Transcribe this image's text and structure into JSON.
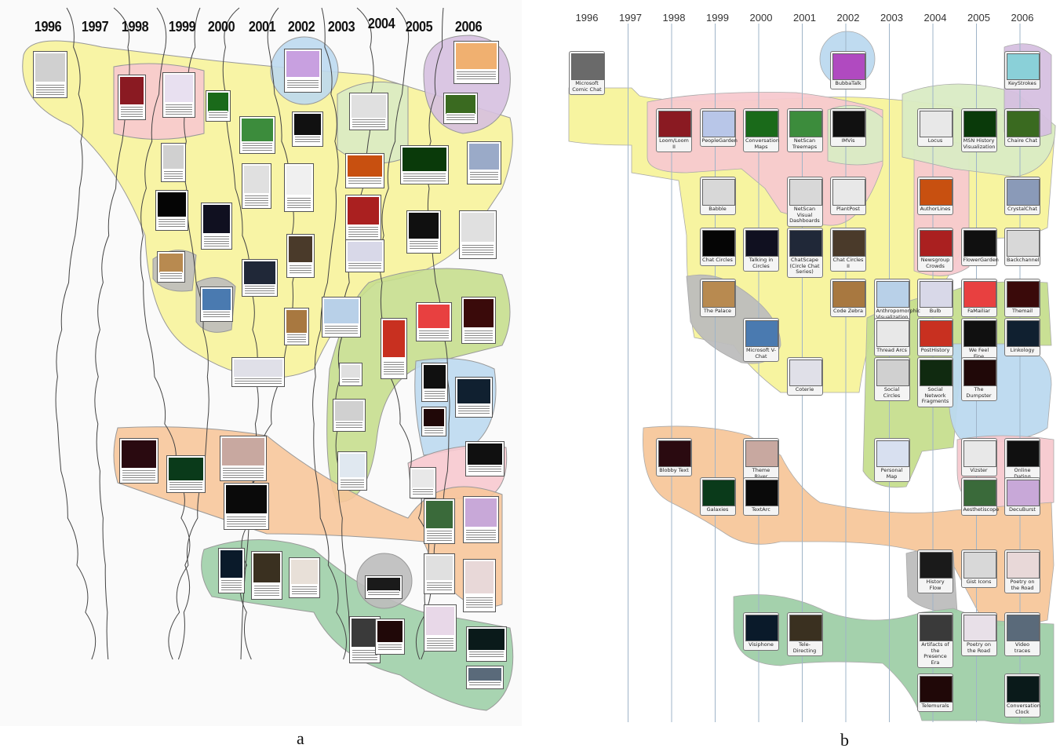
{
  "panel_a": {
    "caption": "a",
    "years": [
      "1996",
      "1997",
      "1998",
      "1999",
      "2000",
      "2001",
      "2002",
      "2003",
      "2004",
      "2005",
      "2006"
    ]
  },
  "panel_b": {
    "caption": "b",
    "years": [
      "1996",
      "1997",
      "1998",
      "1999",
      "2000",
      "2001",
      "2002",
      "2003",
      "2004",
      "2005",
      "2006"
    ],
    "projects": [
      {
        "label": "Microsoft Comic Chat",
        "col": 0,
        "row": 0,
        "tone": "#6a6a6a"
      },
      {
        "label": "Loom/Loom II",
        "col": 2,
        "row": 1,
        "tone": "#8a1a22"
      },
      {
        "label": "PeopleGarden",
        "col": 3,
        "row": 1,
        "tone": "#b8c6e8"
      },
      {
        "label": "Conversation Maps",
        "col": 4,
        "row": 1,
        "tone": "#1a6a1a"
      },
      {
        "label": "NetScan Treemaps",
        "col": 5,
        "row": 1,
        "tone": "#3c8c3c"
      },
      {
        "label": "IMVis",
        "col": 6,
        "row": 1,
        "tone": "#111111"
      },
      {
        "label": "BubbaTalk",
        "col": 6,
        "row": 0,
        "tone": "#b04ac0"
      },
      {
        "label": "Locus",
        "col": 8,
        "row": 1,
        "tone": "#e8e8e8"
      },
      {
        "label": "MSN History Visualization",
        "col": 9,
        "row": 1,
        "tone": "#0a3a0a"
      },
      {
        "label": "KeyStrokes",
        "col": 10,
        "row": 0,
        "tone": "#8ad0d8"
      },
      {
        "label": "Chaire Chat",
        "col": 10,
        "row": 1,
        "tone": "#3a6a20"
      },
      {
        "label": "CrystalChat",
        "col": 10,
        "row": 2,
        "tone": "#8a9ab8"
      },
      {
        "label": "Babble",
        "col": 3,
        "row": 2,
        "tone": "#d8d8d8"
      },
      {
        "label": "NetScan Visual Dashboards",
        "col": 5,
        "row": 2,
        "tone": "#d8d8d8"
      },
      {
        "label": "PlantPost",
        "col": 6,
        "row": 2,
        "tone": "#e8e8e8"
      },
      {
        "label": "AuthorLines",
        "col": 8,
        "row": 2,
        "tone": "#c85010"
      },
      {
        "label": "Newsgroup Crowds",
        "col": 8,
        "row": 3,
        "tone": "#aa2020"
      },
      {
        "label": "FlowerGarden",
        "col": 9,
        "row": 3,
        "tone": "#101010"
      },
      {
        "label": "Backchannel",
        "col": 10,
        "row": 3,
        "tone": "#d8d8d8"
      },
      {
        "label": "Chat Circles",
        "col": 3,
        "row": 3,
        "tone": "#050505"
      },
      {
        "label": "Talking in Circles",
        "col": 4,
        "row": 3,
        "tone": "#101020"
      },
      {
        "label": "ChatScape (Circle Chat Series)",
        "col": 5,
        "row": 3,
        "tone": "#202838"
      },
      {
        "label": "Chat Circles II",
        "col": 6,
        "row": 3,
        "tone": "#4a3a2a"
      },
      {
        "label": "Bulb",
        "col": 8,
        "row": 4,
        "tone": "#d8d8e8"
      },
      {
        "label": "The Palace",
        "col": 3,
        "row": 4,
        "tone": "#b88a50"
      },
      {
        "label": "Anthropomorphic Visualization",
        "col": 7,
        "row": 4,
        "tone": "#b8d0e8"
      },
      {
        "label": "Code Zebra",
        "col": 6,
        "row": 4,
        "tone": "#a87840"
      },
      {
        "label": "FaMailiar",
        "col": 9,
        "row": 4,
        "tone": "#e84040"
      },
      {
        "label": "Themail",
        "col": 10,
        "row": 4,
        "tone": "#3a0a0a"
      },
      {
        "label": "Microsoft V-Chat",
        "col": 4,
        "row": 5,
        "tone": "#4a7ab0"
      },
      {
        "label": "Thread Arcs",
        "col": 7,
        "row": 5,
        "tone": "#e8e8e8"
      },
      {
        "label": "PostHistory",
        "col": 8,
        "row": 5,
        "tone": "#c83020"
      },
      {
        "label": "Coterie",
        "col": 5,
        "row": 6,
        "tone": "#e0e0e8"
      },
      {
        "label": "Social Circles",
        "col": 7,
        "row": 6,
        "tone": "#d0d0d0"
      },
      {
        "label": "Social Network Fragments",
        "col": 8,
        "row": 6,
        "tone": "#102a10"
      },
      {
        "label": "We Feel Fine",
        "col": 9,
        "row": 5,
        "tone": "#101010"
      },
      {
        "label": "Linkology",
        "col": 10,
        "row": 5,
        "tone": "#102030"
      },
      {
        "label": "The Dumpster",
        "col": 9,
        "row": 6,
        "tone": "#200808"
      },
      {
        "label": "Blobby Text",
        "col": 2,
        "row": 7,
        "tone": "#2a0a10"
      },
      {
        "label": "Theme River",
        "col": 4,
        "row": 7,
        "tone": "#c8a8a0"
      },
      {
        "label": "Galaxies",
        "col": 3,
        "row": 8,
        "tone": "#0a3a1a"
      },
      {
        "label": "TextArc",
        "col": 4,
        "row": 8,
        "tone": "#0a0a0a"
      },
      {
        "label": "Personal Map",
        "col": 7,
        "row": 7,
        "tone": "#d8e0f0"
      },
      {
        "label": "Vizster",
        "col": 9,
        "row": 7,
        "tone": "#e8e8e8"
      },
      {
        "label": "Online Dating",
        "col": 10,
        "row": 7,
        "tone": "#101010"
      },
      {
        "label": "Aesthetiscope",
        "col": 9,
        "row": 8,
        "tone": "#3a6a3a"
      },
      {
        "label": "DecuBurst",
        "col": 10,
        "row": 8,
        "tone": "#c8a8d8"
      },
      {
        "label": "History Flow",
        "col": 8,
        "row": 9,
        "tone": "#1a1a1a"
      },
      {
        "label": "Gist Icons",
        "col": 9,
        "row": 9,
        "tone": "#d8d8d8"
      },
      {
        "label": "Poetry on the Road",
        "col": 10,
        "row": 9,
        "tone": "#e8d8d8"
      },
      {
        "label": "Visiphone",
        "col": 4,
        "row": 10,
        "tone": "#0a1a2a"
      },
      {
        "label": "Tele-Directing",
        "col": 5,
        "row": 10,
        "tone": "#3a3020"
      },
      {
        "label": "Artifacts of the Presence Era",
        "col": 8,
        "row": 10,
        "tone": "#3a3a3a"
      },
      {
        "label": "Poetry on the Road",
        "col": 9,
        "row": 10,
        "tone": "#e8e0e8"
      },
      {
        "label": "Video traces",
        "col": 10,
        "row": 10,
        "tone": "#5a6a7a"
      },
      {
        "label": "Telemurals",
        "col": 8,
        "row": 11,
        "tone": "#200808"
      },
      {
        "label": "Conversation Clock",
        "col": 10,
        "row": 11,
        "tone": "#0a1a1a"
      }
    ]
  },
  "colors": {
    "yellow": "#f7f39b",
    "pink": "#f7c9cf",
    "blue": "#bcd9ef",
    "purple": "#d6c0e0",
    "green": "#c6de8e",
    "orange": "#f7c79b",
    "teal": "#9fcfa8",
    "gray": "#bdbdbd",
    "light_green": "#d9ebc4"
  }
}
